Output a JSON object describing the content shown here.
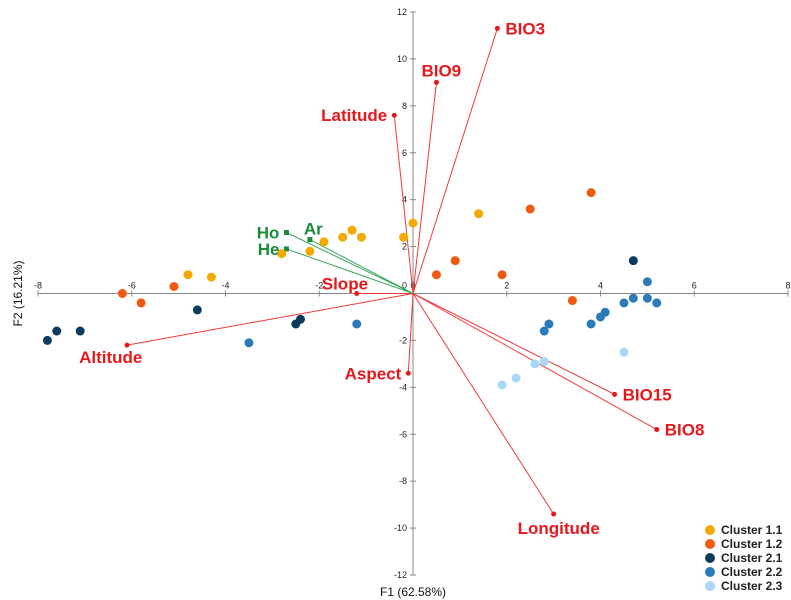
{
  "chart_data": {
    "type": "scatter",
    "title": "",
    "xlabel": "F1 (62.58%)",
    "ylabel": "F2 (16.21%)",
    "xlim": [
      -8,
      8
    ],
    "ylim": [
      -12,
      12
    ],
    "x_ticks": [
      "-8",
      "-6",
      "-4",
      "-2",
      "0",
      "2",
      "4",
      "6",
      "8"
    ],
    "y_ticks": [
      "12",
      "10",
      "8",
      "6",
      "4",
      "2",
      "0",
      "-2",
      "-4",
      "-6",
      "-8",
      "-10",
      "-12"
    ],
    "grid": false,
    "legend": "bottom-right",
    "series": [
      {
        "name": "Cluster 1.1",
        "color": "#f5a800",
        "points": [
          [
            -4.8,
            0.8
          ],
          [
            -4.3,
            0.7
          ],
          [
            -2.8,
            1.7
          ],
          [
            -2.2,
            1.8
          ],
          [
            -1.9,
            2.2
          ],
          [
            -1.5,
            2.4
          ],
          [
            -1.3,
            2.7
          ],
          [
            -1.1,
            2.4
          ],
          [
            -0.2,
            2.4
          ],
          [
            0.0,
            3.0
          ],
          [
            1.4,
            3.4
          ]
        ]
      },
      {
        "name": "Cluster 1.2",
        "color": "#f05a0f",
        "points": [
          [
            -6.2,
            0.0
          ],
          [
            -5.8,
            -0.4
          ],
          [
            -5.1,
            0.3
          ],
          [
            0.5,
            0.8
          ],
          [
            0.9,
            1.4
          ],
          [
            1.9,
            0.8
          ],
          [
            2.5,
            3.6
          ],
          [
            3.4,
            -0.3
          ],
          [
            3.8,
            4.3
          ]
        ]
      },
      {
        "name": "Cluster 2.1",
        "color": "#0b3c5d",
        "points": [
          [
            -7.8,
            -2.0
          ],
          [
            -7.6,
            -1.6
          ],
          [
            -7.1,
            -1.6
          ],
          [
            -4.6,
            -0.7
          ],
          [
            -2.5,
            -1.3
          ],
          [
            -2.4,
            -1.1
          ],
          [
            4.7,
            1.4
          ]
        ]
      },
      {
        "name": "Cluster 2.2",
        "color": "#2b7bb9",
        "points": [
          [
            -3.5,
            -2.1
          ],
          [
            -1.2,
            -1.3
          ],
          [
            2.8,
            -1.6
          ],
          [
            2.9,
            -1.3
          ],
          [
            3.8,
            -1.3
          ],
          [
            4.0,
            -1.0
          ],
          [
            4.1,
            -0.8
          ],
          [
            4.5,
            -0.4
          ],
          [
            4.7,
            -0.2
          ],
          [
            5.0,
            0.5
          ],
          [
            5.0,
            -0.2
          ],
          [
            5.2,
            -0.4
          ]
        ]
      },
      {
        "name": "Cluster 2.3",
        "color": "#a8d8f5",
        "points": [
          [
            1.9,
            -3.9
          ],
          [
            2.2,
            -3.6
          ],
          [
            2.6,
            -3.0
          ],
          [
            2.8,
            -2.9
          ],
          [
            4.5,
            -2.5
          ]
        ]
      }
    ],
    "vectors": [
      {
        "name": "BIO3",
        "x": 1.8,
        "y": 11.3,
        "color": "#e8171c",
        "label_pos": "right"
      },
      {
        "name": "BIO9",
        "x": 0.5,
        "y": 9.0,
        "color": "#e8171c",
        "label_pos": "above"
      },
      {
        "name": "Latitude",
        "x": -0.4,
        "y": 7.6,
        "color": "#e8171c",
        "label_pos": "left"
      },
      {
        "name": "Slope",
        "x": -1.2,
        "y": 0.0,
        "color": "#e8171c",
        "label_pos": "above"
      },
      {
        "name": "Altitude",
        "x": -6.1,
        "y": -2.2,
        "color": "#e8171c",
        "label_pos": "below"
      },
      {
        "name": "Aspect",
        "x": -0.1,
        "y": -3.4,
        "color": "#e8171c",
        "label_pos": "left"
      },
      {
        "name": "BIO15",
        "x": 4.3,
        "y": -4.3,
        "color": "#e8171c",
        "label_pos": "right"
      },
      {
        "name": "BIO8",
        "x": 5.2,
        "y": -5.8,
        "color": "#e8171c",
        "label_pos": "right"
      },
      {
        "name": "Longitude",
        "x": 3.0,
        "y": -9.4,
        "color": "#e8171c",
        "label_pos": "below"
      },
      {
        "name": "Ho",
        "x": -2.7,
        "y": 2.6,
        "color": "#1c8a3a",
        "label_pos": "left"
      },
      {
        "name": "Ar",
        "x": -2.2,
        "y": 2.3,
        "color": "#1c8a3a",
        "label_pos": "right"
      },
      {
        "name": "He",
        "x": -2.7,
        "y": 1.9,
        "color": "#1c8a3a",
        "label_pos": "left"
      }
    ]
  }
}
